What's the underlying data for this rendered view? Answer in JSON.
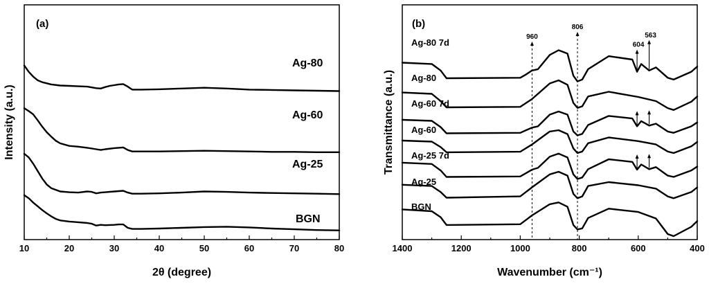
{
  "chart_data": [
    {
      "type": "line",
      "panel_label": "(a)",
      "title": "",
      "xlabel": "2θ (degree)",
      "ylabel": "Intensity (a.u.)",
      "xlim": [
        10,
        80
      ],
      "xticks": [
        10,
        20,
        30,
        40,
        50,
        60,
        70,
        80
      ],
      "y_ticks_labeled": false,
      "series": [
        {
          "name": "Ag-80",
          "x": [
            10,
            11,
            12,
            13,
            14,
            15,
            16,
            18,
            20,
            22,
            24,
            26,
            27,
            28,
            29,
            30,
            31,
            32,
            33,
            34,
            36,
            40,
            45,
            50,
            55,
            60,
            65,
            70,
            75,
            80
          ],
          "y": [
            4.25,
            4.08,
            3.95,
            3.85,
            3.8,
            3.77,
            3.74,
            3.71,
            3.7,
            3.69,
            3.68,
            3.64,
            3.63,
            3.67,
            3.7,
            3.72,
            3.74,
            3.75,
            3.68,
            3.6,
            3.6,
            3.61,
            3.63,
            3.65,
            3.63,
            3.6,
            3.59,
            3.58,
            3.57,
            3.56
          ]
        },
        {
          "name": "Ag-60",
          "x": [
            10,
            11,
            12,
            13,
            14,
            15,
            16,
            17,
            18,
            20,
            22,
            24,
            26,
            27,
            28,
            30,
            32,
            33,
            34,
            36,
            40,
            45,
            50,
            55,
            60,
            65,
            70,
            75,
            80
          ],
          "y": [
            3.1,
            3.02,
            2.93,
            2.77,
            2.6,
            2.45,
            2.33,
            2.22,
            2.15,
            2.08,
            2.06,
            2.03,
            1.99,
            1.97,
            1.99,
            2.02,
            2.04,
            1.97,
            1.93,
            1.93,
            1.93,
            1.94,
            1.95,
            1.94,
            1.93,
            1.92,
            1.92,
            1.91,
            1.91
          ]
        },
        {
          "name": "Ag-25",
          "x": [
            10,
            11,
            12,
            13,
            14,
            15,
            16,
            18,
            20,
            22,
            24,
            25,
            26,
            27,
            28,
            30,
            32,
            33,
            34,
            36,
            40,
            45,
            50,
            55,
            60,
            65,
            70,
            75,
            80
          ],
          "y": [
            1.87,
            1.77,
            1.6,
            1.4,
            1.2,
            1.04,
            0.94,
            0.85,
            0.83,
            0.82,
            0.85,
            0.84,
            0.8,
            0.82,
            0.83,
            0.85,
            0.87,
            0.82,
            0.79,
            0.79,
            0.8,
            0.82,
            0.85,
            0.84,
            0.82,
            0.81,
            0.8,
            0.79,
            0.78
          ]
        },
        {
          "name": "BGN",
          "x": [
            10,
            11,
            12,
            13,
            14,
            15,
            16,
            17,
            18,
            20,
            22,
            24,
            25,
            26,
            27,
            28,
            30,
            31,
            32,
            33,
            34,
            36,
            40,
            45,
            50,
            55,
            60,
            65,
            70,
            75,
            80
          ],
          "y": [
            0.75,
            0.67,
            0.55,
            0.45,
            0.35,
            0.26,
            0.18,
            0.11,
            0.07,
            0.04,
            0.02,
            0.0,
            -0.02,
            -0.07,
            -0.05,
            -0.06,
            -0.05,
            -0.04,
            -0.04,
            -0.13,
            -0.16,
            -0.16,
            -0.15,
            -0.13,
            -0.11,
            -0.1,
            -0.12,
            -0.15,
            -0.17,
            -0.19,
            -0.2
          ]
        }
      ]
    },
    {
      "type": "line",
      "panel_label": "(b)",
      "title": "",
      "xlabel": "Wavenumber (cm⁻¹)",
      "ylabel": "Transmittance (a.u.)",
      "xlim": [
        1400,
        400
      ],
      "x_reversed": true,
      "xticks": [
        1400,
        1200,
        1000,
        800,
        600,
        400
      ],
      "y_ticks_labeled": false,
      "reference_lines": [
        {
          "x": 960,
          "label": "960"
        },
        {
          "x": 806,
          "label": "806"
        }
      ],
      "annotations": [
        {
          "x": 604,
          "label": "604",
          "series": "Ag-80 7d"
        },
        {
          "x": 563,
          "label": "563",
          "series": "Ag-80 7d"
        },
        {
          "x": 604,
          "label": "",
          "series": "Ag-60 7d"
        },
        {
          "x": 563,
          "label": "",
          "series": "Ag-60 7d"
        },
        {
          "x": 604,
          "label": "",
          "series": "Ag-25 7d"
        },
        {
          "x": 563,
          "label": "",
          "series": "Ag-25 7d"
        }
      ],
      "series": [
        {
          "name": "Ag-80 7d",
          "x": [
            1400,
            1300,
            1270,
            1250,
            1000,
            980,
            960,
            940,
            900,
            870,
            840,
            820,
            806,
            790,
            770,
            700,
            620,
            604,
            590,
            563,
            540,
            500,
            480,
            420,
            400
          ],
          "y": [
            6.6,
            6.55,
            6.3,
            6.0,
            6.02,
            6.15,
            6.3,
            6.35,
            6.9,
            7.08,
            6.95,
            6.1,
            5.88,
            5.95,
            6.35,
            6.85,
            6.72,
            6.25,
            6.55,
            6.3,
            6.42,
            6.02,
            5.95,
            6.25,
            6.45
          ]
        },
        {
          "name": "Ag-80",
          "x": [
            1400,
            1300,
            1270,
            1250,
            1000,
            960,
            900,
            870,
            840,
            820,
            806,
            790,
            770,
            700,
            600,
            540,
            500,
            480,
            420,
            400
          ],
          "y": [
            5.45,
            5.4,
            5.12,
            4.88,
            4.9,
            5.2,
            5.8,
            5.92,
            5.75,
            5.05,
            4.86,
            4.92,
            5.3,
            5.48,
            5.28,
            5.12,
            4.85,
            4.78,
            5.1,
            5.3
          ]
        },
        {
          "name": "Ag-60 7d",
          "x": [
            1400,
            1300,
            1270,
            1250,
            1000,
            980,
            960,
            940,
            900,
            870,
            840,
            820,
            806,
            790,
            770,
            700,
            620,
            604,
            590,
            563,
            540,
            500,
            480,
            420,
            400
          ],
          "y": [
            4.4,
            4.36,
            4.12,
            3.88,
            3.9,
            4.0,
            4.1,
            4.15,
            4.6,
            4.72,
            4.6,
            3.95,
            3.8,
            3.86,
            4.2,
            4.55,
            4.45,
            4.15,
            4.35,
            4.18,
            4.25,
            3.95,
            3.9,
            4.15,
            4.3
          ]
        },
        {
          "name": "Ag-60",
          "x": [
            1400,
            1300,
            1270,
            1250,
            1000,
            960,
            900,
            870,
            840,
            820,
            806,
            790,
            770,
            700,
            600,
            540,
            500,
            480,
            420,
            400
          ],
          "y": [
            3.6,
            3.56,
            3.35,
            3.15,
            3.17,
            3.45,
            3.95,
            4.0,
            3.85,
            3.3,
            3.12,
            3.18,
            3.5,
            3.72,
            3.58,
            3.45,
            3.18,
            3.12,
            3.38,
            3.55
          ]
        },
        {
          "name": "Ag-25 7d",
          "x": [
            1400,
            1300,
            1270,
            1250,
            1000,
            980,
            960,
            940,
            900,
            870,
            840,
            820,
            806,
            790,
            770,
            700,
            620,
            604,
            590,
            563,
            540,
            500,
            480,
            420,
            400
          ],
          "y": [
            2.75,
            2.7,
            2.45,
            2.2,
            2.22,
            2.35,
            2.48,
            2.55,
            2.98,
            3.1,
            2.95,
            2.3,
            2.12,
            2.18,
            2.5,
            2.88,
            2.78,
            2.48,
            2.68,
            2.5,
            2.58,
            2.25,
            2.2,
            2.45,
            2.6
          ]
        },
        {
          "name": "Ag-25",
          "x": [
            1400,
            1300,
            1270,
            1250,
            1000,
            960,
            900,
            870,
            840,
            820,
            806,
            790,
            770,
            700,
            600,
            540,
            500,
            480,
            420,
            400
          ],
          "y": [
            1.9,
            1.85,
            1.62,
            1.4,
            1.45,
            1.8,
            2.3,
            2.4,
            2.25,
            1.55,
            1.38,
            1.45,
            1.85,
            2.0,
            1.88,
            1.75,
            1.45,
            1.38,
            1.62,
            1.8
          ]
        },
        {
          "name": "BGN",
          "x": [
            1400,
            1300,
            1270,
            1250,
            1000,
            980,
            960,
            900,
            870,
            840,
            820,
            806,
            790,
            770,
            700,
            600,
            540,
            500,
            480,
            420,
            400
          ],
          "y": [
            0.95,
            0.88,
            0.65,
            0.35,
            0.38,
            0.55,
            0.72,
            1.15,
            1.22,
            1.05,
            0.35,
            0.18,
            0.22,
            0.62,
            0.98,
            0.85,
            0.6,
            0.0,
            -0.08,
            0.28,
            0.5
          ]
        }
      ]
    }
  ]
}
